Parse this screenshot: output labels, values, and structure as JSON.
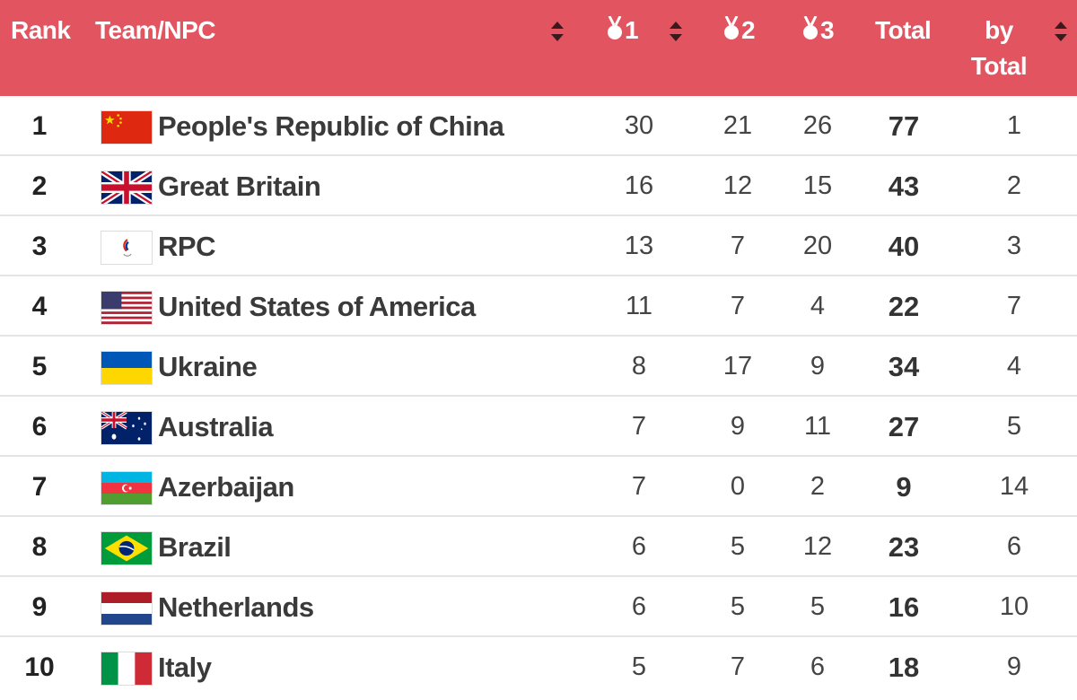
{
  "header": {
    "rank": "Rank",
    "team": "Team/NPC",
    "gold": "1",
    "silver": "2",
    "bronze": "3",
    "total": "Total",
    "by_total_line1": "by",
    "by_total_line2": "Total"
  },
  "colors": {
    "header_bg": "#e25460",
    "header_text": "#ffffff",
    "row_border": "#e4e4e4"
  },
  "rows": [
    {
      "rank": "1",
      "team": "People's Republic of China",
      "flag": "china-flag",
      "gold": "30",
      "silver": "21",
      "bronze": "26",
      "total": "77",
      "by_total": "1"
    },
    {
      "rank": "2",
      "team": "Great Britain",
      "flag": "great-britain-flag",
      "gold": "16",
      "silver": "12",
      "bronze": "15",
      "total": "43",
      "by_total": "2"
    },
    {
      "rank": "3",
      "team": "RPC",
      "flag": "rpc-flag",
      "gold": "13",
      "silver": "7",
      "bronze": "20",
      "total": "40",
      "by_total": "3"
    },
    {
      "rank": "4",
      "team": "United States of America",
      "flag": "usa-flag",
      "gold": "11",
      "silver": "7",
      "bronze": "4",
      "total": "22",
      "by_total": "7"
    },
    {
      "rank": "5",
      "team": "Ukraine",
      "flag": "ukraine-flag",
      "gold": "8",
      "silver": "17",
      "bronze": "9",
      "total": "34",
      "by_total": "4"
    },
    {
      "rank": "6",
      "team": "Australia",
      "flag": "australia-flag",
      "gold": "7",
      "silver": "9",
      "bronze": "11",
      "total": "27",
      "by_total": "5"
    },
    {
      "rank": "7",
      "team": "Azerbaijan",
      "flag": "azerbaijan-flag",
      "gold": "7",
      "silver": "0",
      "bronze": "2",
      "total": "9",
      "by_total": "14"
    },
    {
      "rank": "8",
      "team": "Brazil",
      "flag": "brazil-flag",
      "gold": "6",
      "silver": "5",
      "bronze": "12",
      "total": "23",
      "by_total": "6"
    },
    {
      "rank": "9",
      "team": "Netherlands",
      "flag": "netherlands-flag",
      "gold": "6",
      "silver": "5",
      "bronze": "5",
      "total": "16",
      "by_total": "10"
    },
    {
      "rank": "10",
      "team": "Italy",
      "flag": "italy-flag",
      "gold": "5",
      "silver": "7",
      "bronze": "6",
      "total": "18",
      "by_total": "9"
    }
  ]
}
